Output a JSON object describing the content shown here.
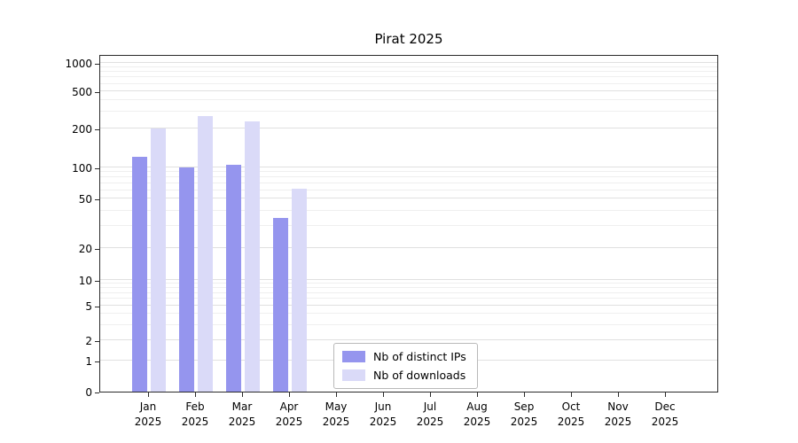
{
  "title": "Pirat 2025",
  "chart_data": {
    "type": "bar",
    "title": "Pirat 2025",
    "scale": "log-with-zero",
    "grid": "horizontal-log-minor",
    "legend_position": "inside-bottom-center",
    "categories": [
      "Jan",
      "Feb",
      "Mar",
      "Apr",
      "May",
      "Jun",
      "Jul",
      "Aug",
      "Sep",
      "Oct",
      "Nov",
      "Dec"
    ],
    "category_year": "2025",
    "y_ticks": [
      0,
      1,
      2,
      5,
      10,
      20,
      50,
      100,
      200,
      500,
      1000
    ],
    "ylim": [
      0,
      1100
    ],
    "series": [
      {
        "name": "Nb of distinct IPs",
        "color": "#9595ee",
        "values": [
          120,
          100,
          105,
          35,
          0,
          0,
          0,
          0,
          0,
          0,
          0,
          0
        ]
      },
      {
        "name": "Nb of downloads",
        "color": "#dadaf8",
        "values": [
          200,
          270,
          240,
          62,
          0,
          0,
          0,
          0,
          0,
          0,
          0,
          0
        ]
      }
    ]
  }
}
